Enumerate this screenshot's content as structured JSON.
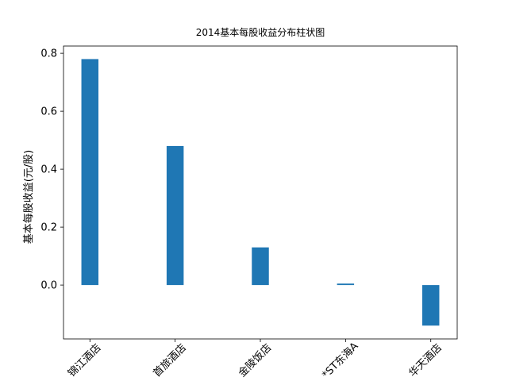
{
  "chart_data": {
    "type": "bar",
    "title": "2014基本每股收益分布柱状图",
    "ylabel": "基本每股收益(元/股)",
    "categories": [
      "锦江酒店",
      "首旅酒店",
      "金陵饭店",
      "*ST东海A",
      "华天酒店"
    ],
    "values": [
      0.78,
      0.48,
      0.13,
      0.005,
      -0.14
    ],
    "color": "#1f77b4",
    "ylim": [
      -0.186,
      0.825
    ],
    "yticks": [
      {
        "value": 0,
        "label": "0.0"
      },
      0.2,
      0.4,
      0.6,
      0.8
    ]
  }
}
